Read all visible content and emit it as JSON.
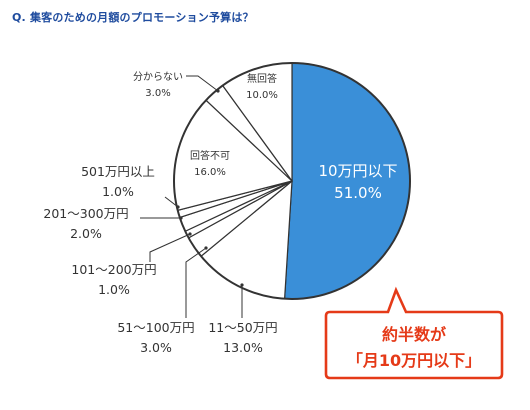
{
  "question": "Q.  集客のための月額のプロモーション予算は？",
  "chart_data": {
    "type": "pie",
    "title": "集客のための月額のプロモーション予算は？",
    "slices": [
      {
        "label": "10万円以下",
        "value": 51.0,
        "display": "51.0%"
      },
      {
        "label": "11～50万円",
        "value": 13.0,
        "display": "13.0%"
      },
      {
        "label": "51～100万円",
        "value": 3.0,
        "display": "3.0%"
      },
      {
        "label": "101～200万円",
        "value": 1.0,
        "display": "1.0%"
      },
      {
        "label": "201～300万円",
        "value": 2.0,
        "display": "2.0%"
      },
      {
        "label": "501万円以上",
        "value": 1.0,
        "display": "1.0%"
      },
      {
        "label": "回答不可",
        "value": 16.0,
        "display": "16.0%"
      },
      {
        "label": "分からない",
        "value": 3.0,
        "display": "3.0%"
      },
      {
        "label": "無回答",
        "value": 10.0,
        "display": "10.0%"
      }
    ],
    "highlight_color": "#3a8fd8",
    "callout": {
      "line1": "約半数が",
      "line2": "「月10万円以下」",
      "color": "#e53a18"
    }
  }
}
